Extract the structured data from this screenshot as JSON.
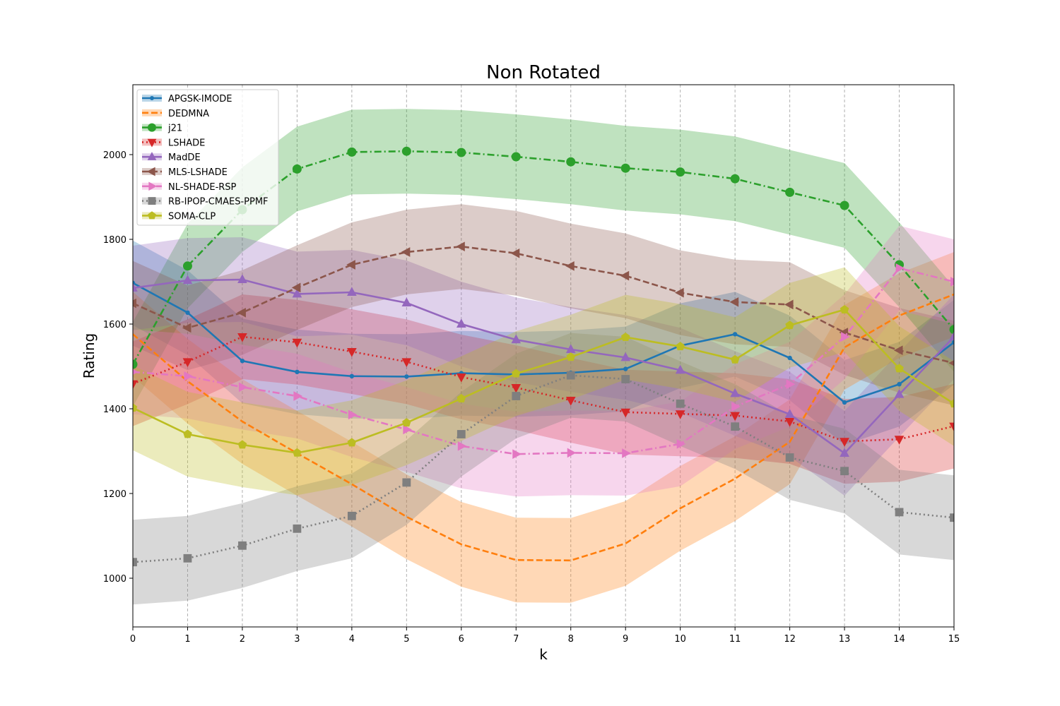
{
  "chart_data": {
    "type": "line",
    "title": "Non Rotated",
    "xlabel": "k",
    "ylabel": "Rating",
    "xlim": [
      0,
      15
    ],
    "ylim": [
      885,
      2165
    ],
    "xticks": [
      0,
      1,
      2,
      3,
      4,
      5,
      6,
      7,
      8,
      9,
      10,
      11,
      12,
      13,
      14,
      15
    ],
    "yticks": [
      1000,
      1200,
      1400,
      1600,
      1800,
      2000
    ],
    "grid": "vertical-dashed",
    "legend_position": "top-left",
    "band_halfwidth": 100,
    "x": [
      0,
      1,
      2,
      3,
      4,
      5,
      6,
      7,
      8,
      9,
      10,
      11,
      12,
      13,
      14,
      15
    ],
    "series": [
      {
        "name": "APGSK-IMODE",
        "color": "#1f77b4",
        "marker": "point",
        "dash": "solid",
        "values": [
          1697,
          1627,
          1513,
          1487,
          1477,
          1476,
          1484,
          1481,
          1485,
          1494,
          1549,
          1576,
          1520,
          1415,
          1458,
          1557
        ]
      },
      {
        "name": "DEDMNA",
        "color": "#ff7f0e",
        "marker": "none",
        "dash": "dashed",
        "values": [
          1576,
          1465,
          1370,
          1295,
          1222,
          1145,
          1080,
          1043,
          1042,
          1082,
          1165,
          1235,
          1322,
          1545,
          1620,
          1670
        ]
      },
      {
        "name": "j21",
        "color": "#2ca02c",
        "marker": "circle",
        "dash": "dashdot",
        "values": [
          1505,
          1737,
          1870,
          1966,
          2006,
          2008,
          2005,
          1995,
          1983,
          1968,
          1959,
          1943,
          1911,
          1880,
          1740,
          1587
        ]
      },
      {
        "name": "LSHADE",
        "color": "#d62728",
        "marker": "triangle-down",
        "dash": "dotted",
        "values": [
          1459,
          1511,
          1570,
          1557,
          1535,
          1511,
          1475,
          1450,
          1420,
          1392,
          1388,
          1384,
          1370,
          1323,
          1328,
          1359
        ]
      },
      {
        "name": "MadDE",
        "color": "#9467bd",
        "marker": "triangle-up",
        "dash": "solid",
        "values": [
          1685,
          1703,
          1705,
          1671,
          1675,
          1650,
          1600,
          1563,
          1540,
          1521,
          1491,
          1436,
          1387,
          1295,
          1434,
          1570
        ]
      },
      {
        "name": "MLS-LSHADE",
        "color": "#8c564b",
        "marker": "triangle-left",
        "dash": "dashed",
        "values": [
          1649,
          1591,
          1627,
          1686,
          1740,
          1770,
          1783,
          1767,
          1737,
          1714,
          1674,
          1652,
          1646,
          1580,
          1538,
          1508
        ]
      },
      {
        "name": "NL-SHADE-RSP",
        "color": "#e377c2",
        "marker": "triangle-right",
        "dash": "dashdot",
        "values": [
          1487,
          1477,
          1451,
          1430,
          1386,
          1351,
          1312,
          1293,
          1296,
          1295,
          1317,
          1405,
          1458,
          1570,
          1732,
          1700
        ]
      },
      {
        "name": "RB-IPOP-CMAES-PPMF",
        "color": "#7f7f7f",
        "marker": "square",
        "dash": "dotted",
        "values": [
          1038,
          1047,
          1077,
          1117,
          1147,
          1226,
          1340,
          1430,
          1479,
          1470,
          1412,
          1358,
          1285,
          1253,
          1156,
          1143
        ]
      },
      {
        "name": "SOMA-CLP",
        "color": "#bcbd22",
        "marker": "pentagon",
        "dash": "solid",
        "values": [
          1402,
          1340,
          1315,
          1296,
          1320,
          1367,
          1424,
          1483,
          1522,
          1569,
          1547,
          1516,
          1597,
          1634,
          1495,
          1412
        ]
      }
    ]
  }
}
